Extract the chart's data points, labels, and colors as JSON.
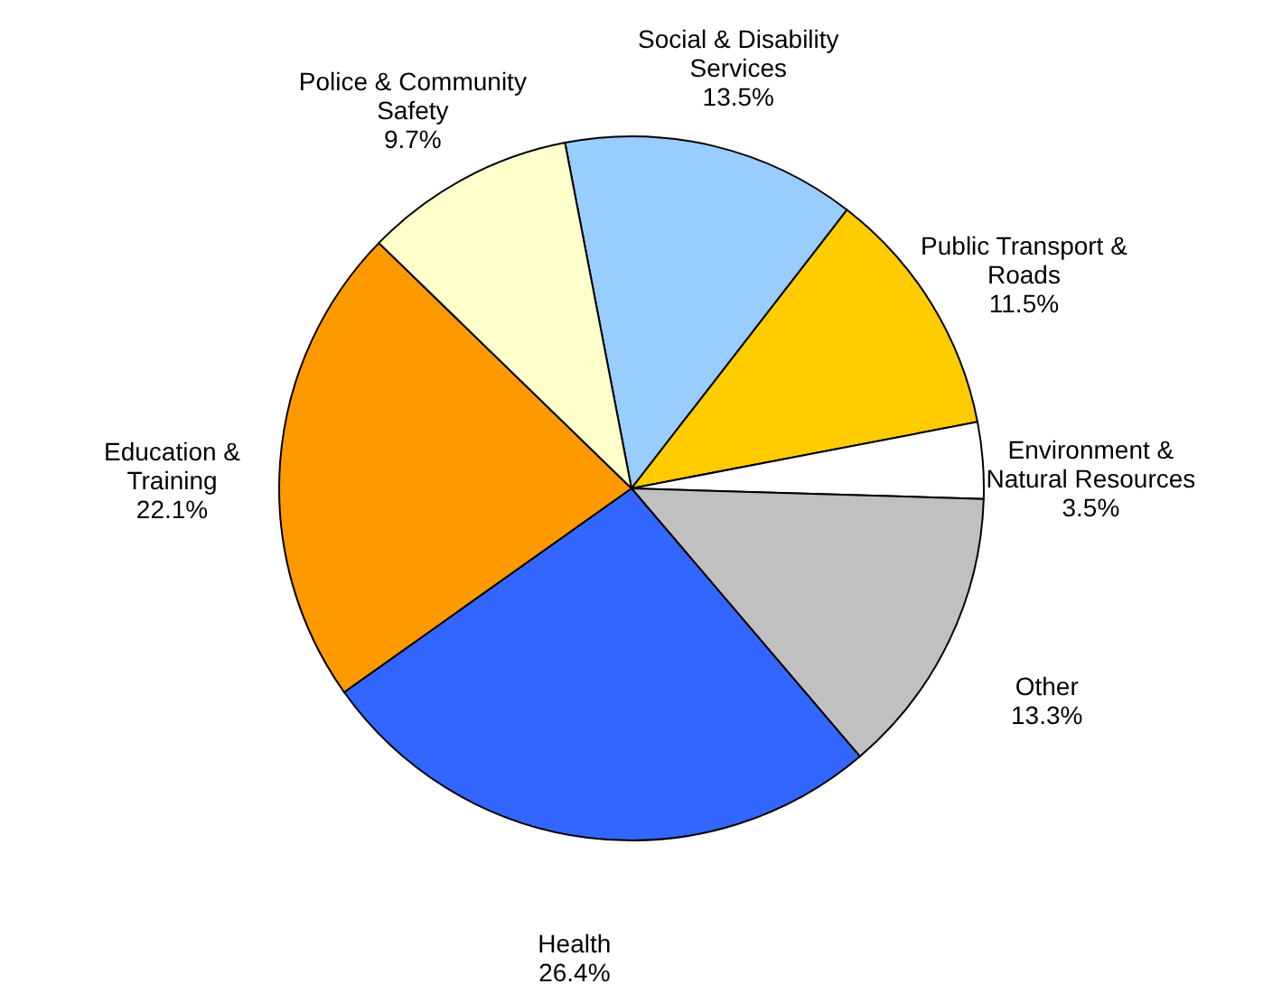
{
  "chart_data": {
    "type": "pie",
    "categories": [
      "Social & Disability Services",
      "Public Transport & Roads",
      "Environment & Natural Resources",
      "Other",
      "Health",
      "Education & Training",
      "Police & Community Safety"
    ],
    "values": [
      13.5,
      11.5,
      3.5,
      13.3,
      26.4,
      22.1,
      9.7
    ],
    "colors": [
      "#99ccff",
      "#ffcc00",
      "#ffffff",
      "#c0c0c0",
      "#3366ff",
      "#ff9900",
      "#ffffcc"
    ],
    "value_labels": [
      "13.5%",
      "11.5%",
      "3.5%",
      "13.3%",
      "26.4%",
      "22.1%",
      "9.7%"
    ]
  }
}
